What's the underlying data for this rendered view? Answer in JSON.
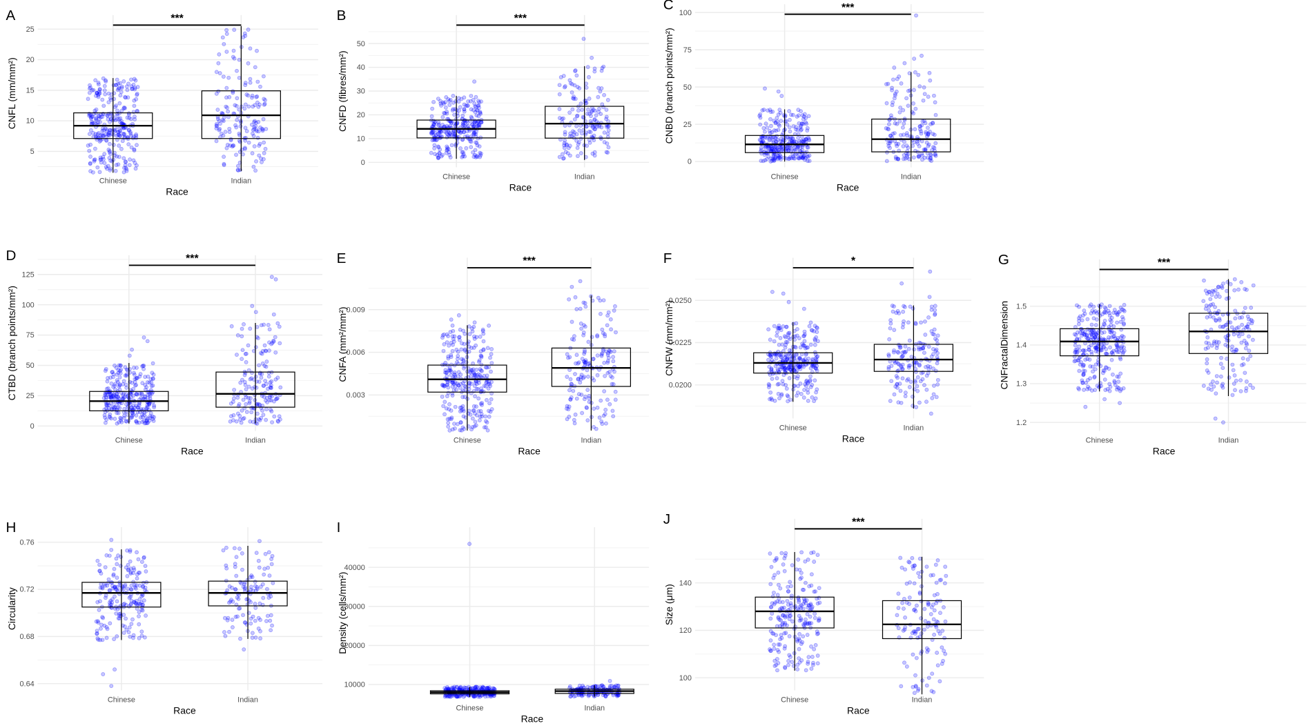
{
  "chart_data": [
    {
      "type": "box",
      "panel": "A",
      "ylabel": "CNFL (mm/mm²)",
      "xlabel": "Race",
      "categories": [
        "Chinese",
        "Indian"
      ],
      "yticks": [
        "5",
        "10",
        "15",
        "20",
        "25"
      ],
      "ytick_values": [
        5,
        10,
        15,
        20,
        25
      ],
      "ylim": [
        1.7,
        27.3
      ],
      "significance": "***",
      "series": [
        {
          "name": "Chinese",
          "q1": 7.1,
          "median": 9.2,
          "q3": 11.3,
          "whisker_low": 1.5,
          "whisker_high": 17,
          "outliers": []
        },
        {
          "name": "Indian",
          "q1": 7.1,
          "median": 10.9,
          "q3": 14.9,
          "whisker_low": 1.8,
          "whisker_high": 25.5,
          "outliers": []
        }
      ]
    },
    {
      "type": "box",
      "panel": "B",
      "ylabel": "CNFD (fibres/mm²)",
      "xlabel": "Race",
      "categories": [
        "Chinese",
        "Indian"
      ],
      "yticks": [
        "0",
        "10",
        "20",
        "30",
        "40",
        "50"
      ],
      "ytick_values": [
        0,
        10,
        20,
        30,
        40,
        50
      ],
      "ylim": [
        -2.1,
        62
      ],
      "significance": "***",
      "series": [
        {
          "name": "Chinese",
          "q1": 10.3,
          "median": 14.1,
          "q3": 17.8,
          "whisker_low": 1.5,
          "whisker_high": 28,
          "outliers": [
            34
          ]
        },
        {
          "name": "Indian",
          "q1": 10.2,
          "median": 16.3,
          "q3": 23.6,
          "whisker_low": 1,
          "whisker_high": 40.5,
          "outliers": [
            44,
            52
          ]
        }
      ]
    },
    {
      "type": "box",
      "panel": "C",
      "ylabel": "CNBD (branch points/mm²)",
      "xlabel": "Race",
      "categories": [
        "Chinese",
        "Indian"
      ],
      "yticks": [
        "0",
        "25",
        "50",
        "75",
        "100"
      ],
      "ytick_values": [
        0,
        25,
        50,
        75,
        100
      ],
      "ylim": [
        -3.9,
        105.6
      ],
      "significance": "***",
      "series": [
        {
          "name": "Chinese",
          "q1": 6,
          "median": 11.5,
          "q3": 17.5,
          "whisker_low": 0,
          "whisker_high": 35,
          "outliers": [
            44,
            47,
            49
          ]
        },
        {
          "name": "Indian",
          "q1": 6.5,
          "median": 15,
          "q3": 28.5,
          "whisker_low": 0,
          "whisker_high": 60,
          "outliers": [
            63,
            66,
            69,
            71,
            98
          ]
        }
      ]
    },
    {
      "type": "box",
      "panel": "D",
      "ylabel": "CTBD (branch points/mm²)",
      "xlabel": "Race",
      "categories": [
        "Chinese",
        "Indian"
      ],
      "yticks": [
        "0",
        "25",
        "50",
        "75",
        "100",
        "125"
      ],
      "ytick_values": [
        0,
        25,
        50,
        75,
        100,
        125
      ],
      "ylim": [
        -4.1,
        140.9
      ],
      "significance": "***",
      "series": [
        {
          "name": "Chinese",
          "q1": 12.5,
          "median": 20.5,
          "q3": 28.5,
          "whisker_low": 2,
          "whisker_high": 52,
          "outliers": [
            58,
            63,
            70,
            73
          ]
        },
        {
          "name": "Indian",
          "q1": 15.5,
          "median": 26.5,
          "q3": 44.5,
          "whisker_low": 2,
          "whisker_high": 85,
          "outliers": [
            92,
            94,
            99,
            121,
            123
          ]
        }
      ]
    },
    {
      "type": "box",
      "panel": "E",
      "ylabel": "CNFA (mm²/mm²)",
      "xlabel": "Race",
      "categories": [
        "Chinese",
        "Indian"
      ],
      "yticks": [
        "0.003",
        "0.006",
        "0.009"
      ],
      "ytick_values": [
        0.003,
        0.006,
        0.009
      ],
      "ylim": [
        0.00047,
        0.01265
      ],
      "significance": "***",
      "series": [
        {
          "name": "Chinese",
          "q1": 0.0032,
          "median": 0.0041,
          "q3": 0.0051,
          "whisker_low": 0.0005,
          "whisker_high": 0.0079,
          "outliers": [
            0.0081,
            0.0083,
            0.0086
          ]
        },
        {
          "name": "Indian",
          "q1": 0.0036,
          "median": 0.0049,
          "q3": 0.0063,
          "whisker_low": 0.0005,
          "whisker_high": 0.01,
          "outliers": [
            0.0106,
            0.011
          ]
        }
      ]
    },
    {
      "type": "box",
      "panel": "F",
      "ylabel": "CNFW (mm/mm²)",
      "xlabel": "Race",
      "categories": [
        "Chinese",
        "Indian"
      ],
      "yticks": [
        "0.0200",
        "0.0225",
        "0.0250"
      ],
      "ytick_values": [
        0.02,
        0.0225,
        0.025
      ],
      "ylim": [
        0.01802,
        0.02752
      ],
      "significance": "*",
      "series": [
        {
          "name": "Chinese",
          "q1": 0.0207,
          "median": 0.0213,
          "q3": 0.0219,
          "whisker_low": 0.019,
          "whisker_high": 0.0237,
          "outliers": [
            0.0245,
            0.0249,
            0.0254,
            0.0255
          ]
        },
        {
          "name": "Indian",
          "q1": 0.0208,
          "median": 0.0215,
          "q3": 0.0224,
          "whisker_low": 0.0186,
          "whisker_high": 0.0247,
          "outliers": [
            0.0183,
            0.0252,
            0.026,
            0.0267
          ]
        }
      ]
    },
    {
      "type": "box",
      "panel": "G",
      "ylabel": "CNFractalDimension",
      "xlabel": "Race",
      "categories": [
        "Chinese",
        "Indian"
      ],
      "yticks": [
        "1.2",
        "1.3",
        "1.4",
        "1.5"
      ],
      "ytick_values": [
        1.2,
        1.3,
        1.4,
        1.5
      ],
      "ylim": [
        1.178,
        1.621
      ],
      "significance": "***",
      "series": [
        {
          "name": "Chinese",
          "q1": 1.372,
          "median": 1.409,
          "q3": 1.442,
          "whisker_low": 1.28,
          "whisker_high": 1.505,
          "outliers": [
            1.24,
            1.25,
            1.26
          ]
        },
        {
          "name": "Indian",
          "q1": 1.378,
          "median": 1.435,
          "q3": 1.482,
          "whisker_low": 1.268,
          "whisker_high": 1.57,
          "outliers": [
            1.2,
            1.21
          ]
        }
      ]
    },
    {
      "type": "box",
      "panel": "H",
      "ylabel": "Circularity",
      "xlabel": "Race",
      "categories": [
        "Chinese",
        "Indian"
      ],
      "yticks": [
        "0.64",
        "0.68",
        "0.72",
        "0.76"
      ],
      "ytick_values": [
        0.64,
        0.68,
        0.72,
        0.76
      ],
      "ylim": [
        0.6343,
        0.7728
      ],
      "significance": "",
      "series": [
        {
          "name": "Chinese",
          "q1": 0.705,
          "median": 0.717,
          "q3": 0.726,
          "whisker_low": 0.677,
          "whisker_high": 0.754,
          "outliers": [
            0.638,
            0.648,
            0.652,
            0.762
          ]
        },
        {
          "name": "Indian",
          "q1": 0.706,
          "median": 0.717,
          "q3": 0.727,
          "whisker_low": 0.678,
          "whisker_high": 0.757,
          "outliers": [
            0.669,
            0.761
          ]
        }
      ]
    },
    {
      "type": "box",
      "panel": "I",
      "ylabel": "Density (cells/mm²)",
      "xlabel": "Race",
      "categories": [
        "Chinese",
        "Indian"
      ],
      "yticks": [
        "10000",
        "20000",
        "30000",
        "40000"
      ],
      "ytick_values": [
        10000,
        20000,
        30000,
        40000
      ],
      "ylim": [
        6357,
        50285
      ],
      "significance": "",
      "series": [
        {
          "name": "Chinese",
          "q1": 7600,
          "median": 8000,
          "q3": 8400,
          "whisker_low": 6800,
          "whisker_high": 9400,
          "outliers": [
            46000
          ]
        },
        {
          "name": "Indian",
          "q1": 7700,
          "median": 8300,
          "q3": 8800,
          "whisker_low": 6900,
          "whisker_high": 9800,
          "outliers": [
            10900
          ]
        }
      ]
    },
    {
      "type": "box",
      "panel": "J",
      "ylabel": "Size (μm)",
      "xlabel": "Race",
      "categories": [
        "Chinese",
        "Indian"
      ],
      "yticks": [
        "100",
        "120",
        "140"
      ],
      "ytick_values": [
        100,
        120,
        140
      ],
      "ylim": [
        94.7,
        167
      ],
      "significance": "***",
      "series": [
        {
          "name": "Chinese",
          "q1": 121,
          "median": 128,
          "q3": 134,
          "whisker_low": 103,
          "whisker_high": 153,
          "outliers": []
        },
        {
          "name": "Indian",
          "q1": 116.5,
          "median": 122.5,
          "q3": 132.5,
          "whisker_low": 93,
          "whisker_high": 151,
          "outliers": []
        }
      ]
    }
  ],
  "colors": {
    "points": "#0000ff",
    "box": "#000000",
    "grid": "#ebebeb"
  }
}
